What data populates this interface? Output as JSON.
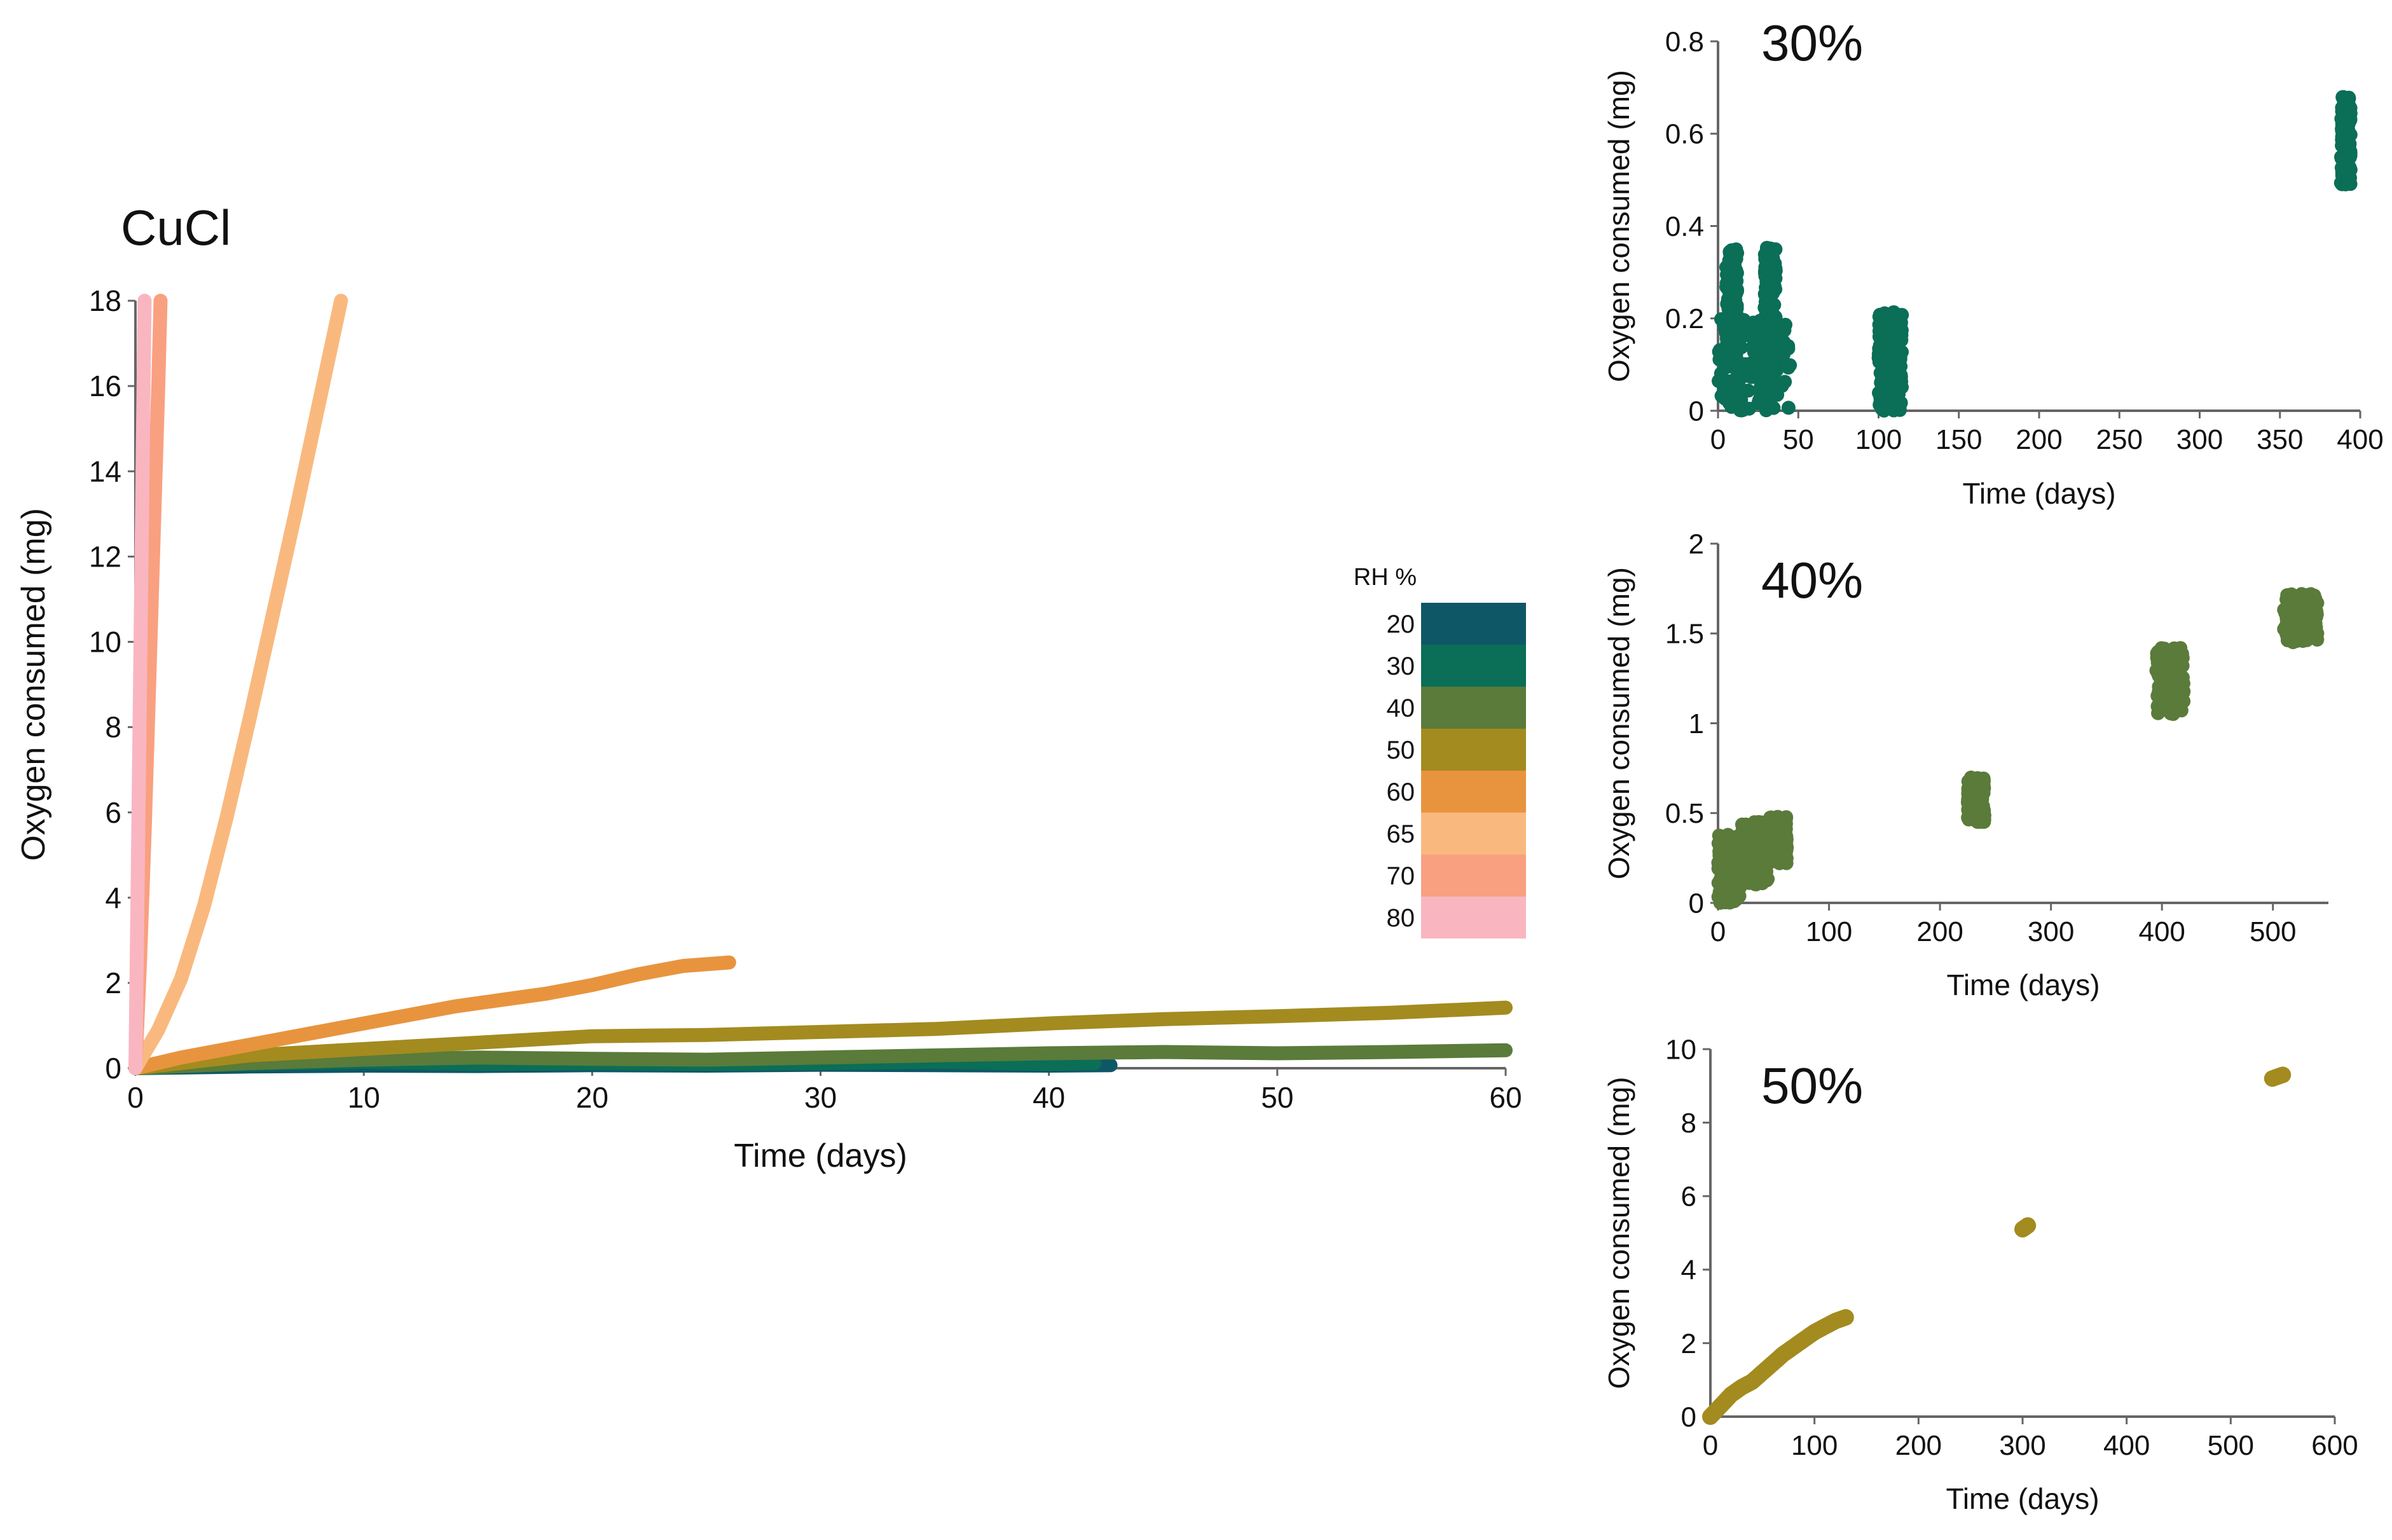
{
  "chart_data": [
    {
      "id": "main",
      "type": "line",
      "title": "CuCl",
      "xlabel": "Time (days)",
      "ylabel": "Oxygen consumed (mg)",
      "xlim": [
        0,
        60
      ],
      "ylim": [
        0,
        18
      ],
      "xticks": [
        "0",
        "10",
        "20",
        "30",
        "40",
        "50",
        "60"
      ],
      "yticks": [
        "0",
        "2",
        "4",
        "6",
        "8",
        "10",
        "12",
        "14",
        "16",
        "18"
      ],
      "legend": {
        "title": "RH %",
        "position": "right",
        "entries": [
          {
            "label": "20",
            "color": "#0e5766"
          },
          {
            "label": "30",
            "color": "#0b6e57"
          },
          {
            "label": "40",
            "color": "#5a7b3a"
          },
          {
            "label": "50",
            "color": "#a38b1f"
          },
          {
            "label": "60",
            "color": "#e8943e"
          },
          {
            "label": "65",
            "color": "#f9b97e"
          },
          {
            "label": "70",
            "color": "#f9a080"
          },
          {
            "label": "80",
            "color": "#f9b6c1"
          }
        ]
      },
      "series": [
        {
          "name": "20",
          "color": "#0e5766",
          "x": [
            0,
            5,
            10,
            15,
            20,
            25,
            30,
            35,
            40,
            42.7
          ],
          "y": [
            0,
            0.04,
            0.06,
            0.05,
            0.07,
            0.06,
            0.08,
            0.07,
            0.06,
            0.07
          ]
        },
        {
          "name": "30",
          "color": "#0b6e57",
          "x": [
            0,
            5,
            10,
            15,
            20,
            25,
            30,
            35,
            40,
            42
          ],
          "y": [
            0,
            0.1,
            0.15,
            0.1,
            0.12,
            0.1,
            0.12,
            0.15,
            0.1,
            0.12
          ]
        },
        {
          "name": "40",
          "color": "#5a7b3a",
          "x": [
            0,
            5,
            10,
            15,
            20,
            25,
            30,
            35,
            40,
            45,
            50,
            55,
            60
          ],
          "y": [
            0,
            0.12,
            0.2,
            0.25,
            0.22,
            0.2,
            0.25,
            0.3,
            0.35,
            0.38,
            0.35,
            0.38,
            0.42
          ]
        },
        {
          "name": "50",
          "color": "#a38b1f",
          "x": [
            0,
            5,
            10,
            15,
            20,
            25,
            30,
            35,
            40,
            45,
            50,
            55,
            60
          ],
          "y": [
            0,
            0.3,
            0.45,
            0.6,
            0.75,
            0.78,
            0.85,
            0.92,
            1.05,
            1.15,
            1.22,
            1.3,
            1.42
          ]
        },
        {
          "name": "60",
          "color": "#e8943e",
          "x": [
            0,
            2,
            4,
            6,
            8,
            10,
            12,
            14,
            16,
            18,
            20,
            22,
            24,
            26
          ],
          "y": [
            0,
            0.25,
            0.45,
            0.65,
            0.85,
            1.05,
            1.25,
            1.45,
            1.6,
            1.75,
            1.95,
            2.2,
            2.4,
            2.48
          ]
        },
        {
          "name": "65",
          "color": "#f9b97e",
          "x": [
            0,
            1,
            2,
            3,
            4,
            5,
            6,
            7,
            8,
            9
          ],
          "y": [
            0,
            0.9,
            2.1,
            3.8,
            5.9,
            8.2,
            10.6,
            13.0,
            15.5,
            18
          ]
        },
        {
          "name": "70",
          "color": "#f9a080",
          "x": [
            0,
            0.2,
            0.4,
            0.6,
            0.8,
            1.0,
            1.1
          ],
          "y": [
            0,
            2.5,
            5.5,
            9.0,
            12.5,
            16.0,
            18
          ]
        },
        {
          "name": "80",
          "color": "#f9b6c1",
          "x": [
            0,
            0.1,
            0.2,
            0.3,
            0.4
          ],
          "y": [
            0,
            4.5,
            9.0,
            13.5,
            18
          ]
        }
      ]
    },
    {
      "id": "rh30",
      "type": "scatter",
      "title": "30%",
      "xlabel": "Time (days)",
      "ylabel": "Oxygen consumed (mg)",
      "xlim": [
        0,
        400
      ],
      "ylim": [
        0,
        0.8
      ],
      "xticks": [
        "0",
        "50",
        "100",
        "150",
        "200",
        "250",
        "300",
        "350",
        "400"
      ],
      "yticks": [
        "0",
        "0.2",
        "0.4",
        "0.6",
        "0.8"
      ],
      "color": "#0b6e57",
      "clusters": [
        {
          "x": [
            0,
            45
          ],
          "y": [
            0,
            0.2
          ]
        },
        {
          "x": [
            5,
            12
          ],
          "y": [
            0.1,
            0.35
          ]
        },
        {
          "x": [
            29,
            36
          ],
          "y": [
            0.1,
            0.36
          ]
        },
        {
          "x": [
            100,
            115
          ],
          "y": [
            0,
            0.22
          ]
        },
        {
          "x": [
            388,
            394
          ],
          "y": [
            0.49,
            0.68
          ]
        }
      ]
    },
    {
      "id": "rh40",
      "type": "scatter",
      "title": "40%",
      "xlabel": "Time (days)",
      "ylabel": "Oxygen consumed (mg)",
      "xlim": [
        0,
        550
      ],
      "ylim": [
        0,
        2
      ],
      "xticks": [
        "0",
        "100",
        "200",
        "300",
        "400",
        "500"
      ],
      "yticks": [
        "0",
        "0.5",
        "1",
        "1.5",
        "2"
      ],
      "color": "#5a7b3a",
      "clusters": [
        {
          "x": [
            0,
            20
          ],
          "y": [
            0,
            0.38
          ]
        },
        {
          "x": [
            20,
            45
          ],
          "y": [
            0.1,
            0.45
          ]
        },
        {
          "x": [
            45,
            62
          ],
          "y": [
            0.22,
            0.48
          ]
        },
        {
          "x": [
            225,
            240
          ],
          "y": [
            0.45,
            0.7
          ]
        },
        {
          "x": [
            395,
            420
          ],
          "y": [
            1.05,
            1.42
          ]
        },
        {
          "x": [
            510,
            540
          ],
          "y": [
            1.45,
            1.72
          ]
        }
      ]
    },
    {
      "id": "rh50",
      "type": "scatter",
      "title": "50%",
      "xlabel": "Time (days)",
      "ylabel": "Oxygen consumed (mg)",
      "xlim": [
        0,
        600
      ],
      "ylim": [
        0,
        10
      ],
      "xticks": [
        "0",
        "100",
        "200",
        "300",
        "400",
        "500",
        "600"
      ],
      "yticks": [
        "0",
        "2",
        "4",
        "6",
        "8",
        "10"
      ],
      "color": "#a38b1f",
      "x": [
        0,
        10,
        20,
        30,
        40,
        50,
        60,
        70,
        80,
        90,
        100,
        110,
        120,
        130,
        300,
        305,
        540,
        550
      ],
      "y": [
        0,
        0.3,
        0.6,
        0.8,
        0.95,
        1.2,
        1.45,
        1.7,
        1.9,
        2.1,
        2.3,
        2.45,
        2.6,
        2.7,
        5.1,
        5.2,
        9.2,
        9.3
      ]
    }
  ]
}
